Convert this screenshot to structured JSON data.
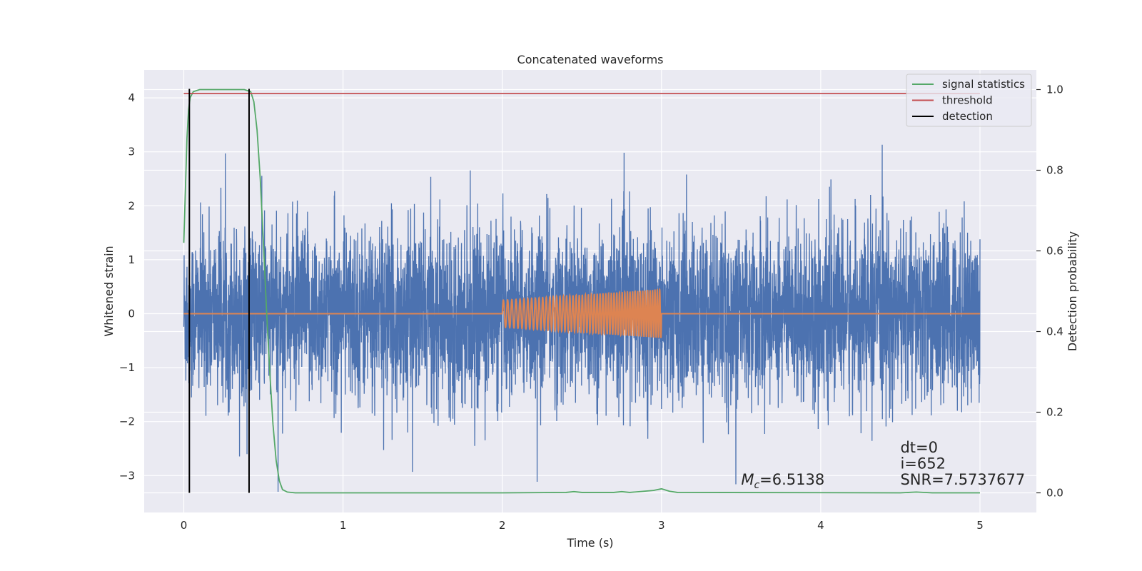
{
  "chart_data": {
    "type": "line",
    "title": "Concatenated waveforms",
    "xlabel": "Time (s)",
    "ylabel_left": "Whitened strain",
    "ylabel_right": "Detection probability",
    "xlim": [
      -0.25,
      5.35
    ],
    "ylim_left": [
      -3.68,
      4.5
    ],
    "ylim_right": [
      -0.048,
      1.045
    ],
    "xticks": [
      0,
      1,
      2,
      3,
      4,
      5
    ],
    "xtick_labels": [
      "0",
      "1",
      "2",
      "3",
      "4",
      "5"
    ],
    "yticks_left": [
      -3,
      -2,
      -1,
      0,
      1,
      2,
      3,
      4
    ],
    "ytick_labels_left": [
      "−3",
      "−2",
      "−1",
      "0",
      "1",
      "2",
      "3",
      "4"
    ],
    "yticks_right": [
      0.0,
      0.2,
      0.4,
      0.6,
      0.8,
      1.0
    ],
    "ytick_labels_right": [
      "0.0",
      "0.2",
      "0.4",
      "0.6",
      "0.8",
      "1.0"
    ],
    "grid": true,
    "legend_position": "top-right",
    "legend": [
      {
        "label": "signal statistics",
        "color": "#55a868"
      },
      {
        "label": "threshold",
        "color": "#c44e52"
      },
      {
        "label": "detection",
        "color": "#000000"
      }
    ],
    "series": [
      {
        "role": "whitened strain noise",
        "color": "#4c72b0",
        "axis": "left",
        "x_range": [
          0,
          5
        ],
        "typical_amplitude": 1.0,
        "max_positive": 3.5,
        "max_negative": -3.3
      },
      {
        "role": "injected chirp waveform",
        "color": "#dd8452",
        "axis": "left",
        "chirp_start": 2.0,
        "chirp_end": 3.0,
        "amplitude_start": 0.25,
        "amplitude_end": 0.45,
        "cycles": 52
      },
      {
        "name": "signal statistics",
        "color": "#55a868",
        "axis": "right",
        "x": [
          0,
          0.01,
          0.02,
          0.03,
          0.04,
          0.06,
          0.1,
          0.2,
          0.3,
          0.38,
          0.42,
          0.44,
          0.46,
          0.48,
          0.5,
          0.52,
          0.54,
          0.56,
          0.58,
          0.6,
          0.62,
          0.65,
          0.7,
          1.0,
          2.0,
          2.4,
          2.45,
          2.5,
          2.7,
          2.75,
          2.8,
          2.95,
          3.0,
          3.05,
          3.1,
          4.5,
          4.6,
          4.7,
          5.0
        ],
        "y": [
          0.62,
          0.75,
          0.88,
          0.95,
          0.98,
          0.995,
          1.0,
          1.0,
          1.0,
          1.0,
          0.995,
          0.97,
          0.9,
          0.78,
          0.62,
          0.45,
          0.3,
          0.17,
          0.08,
          0.03,
          0.008,
          0.002,
          0.0,
          0.0,
          0.0,
          0.001,
          0.003,
          0.001,
          0.001,
          0.003,
          0.001,
          0.006,
          0.01,
          0.004,
          0.001,
          0.0,
          0.002,
          0.0,
          0.0
        ]
      },
      {
        "name": "threshold",
        "color": "#c44e52",
        "axis": "right",
        "x": [
          0,
          5
        ],
        "y": [
          0.99,
          0.99
        ]
      },
      {
        "name": "detection",
        "color": "#000000",
        "axis": "right",
        "vertical_lines_x": [
          0.035,
          0.41
        ],
        "y_range": [
          0.0,
          1.0
        ]
      }
    ],
    "annotations": [
      {
        "text": "dt=0",
        "x": 4.5,
        "y": 0.1
      },
      {
        "text": "i=652",
        "x": 4.5,
        "y": 0.06
      },
      {
        "text": "SNR=7.5737677",
        "x": 4.5,
        "y": 0.02
      },
      {
        "text_main": "M",
        "text_sub": "c",
        "text_rest": "=6.5138",
        "x": 3.5,
        "y": 0.02
      }
    ]
  }
}
